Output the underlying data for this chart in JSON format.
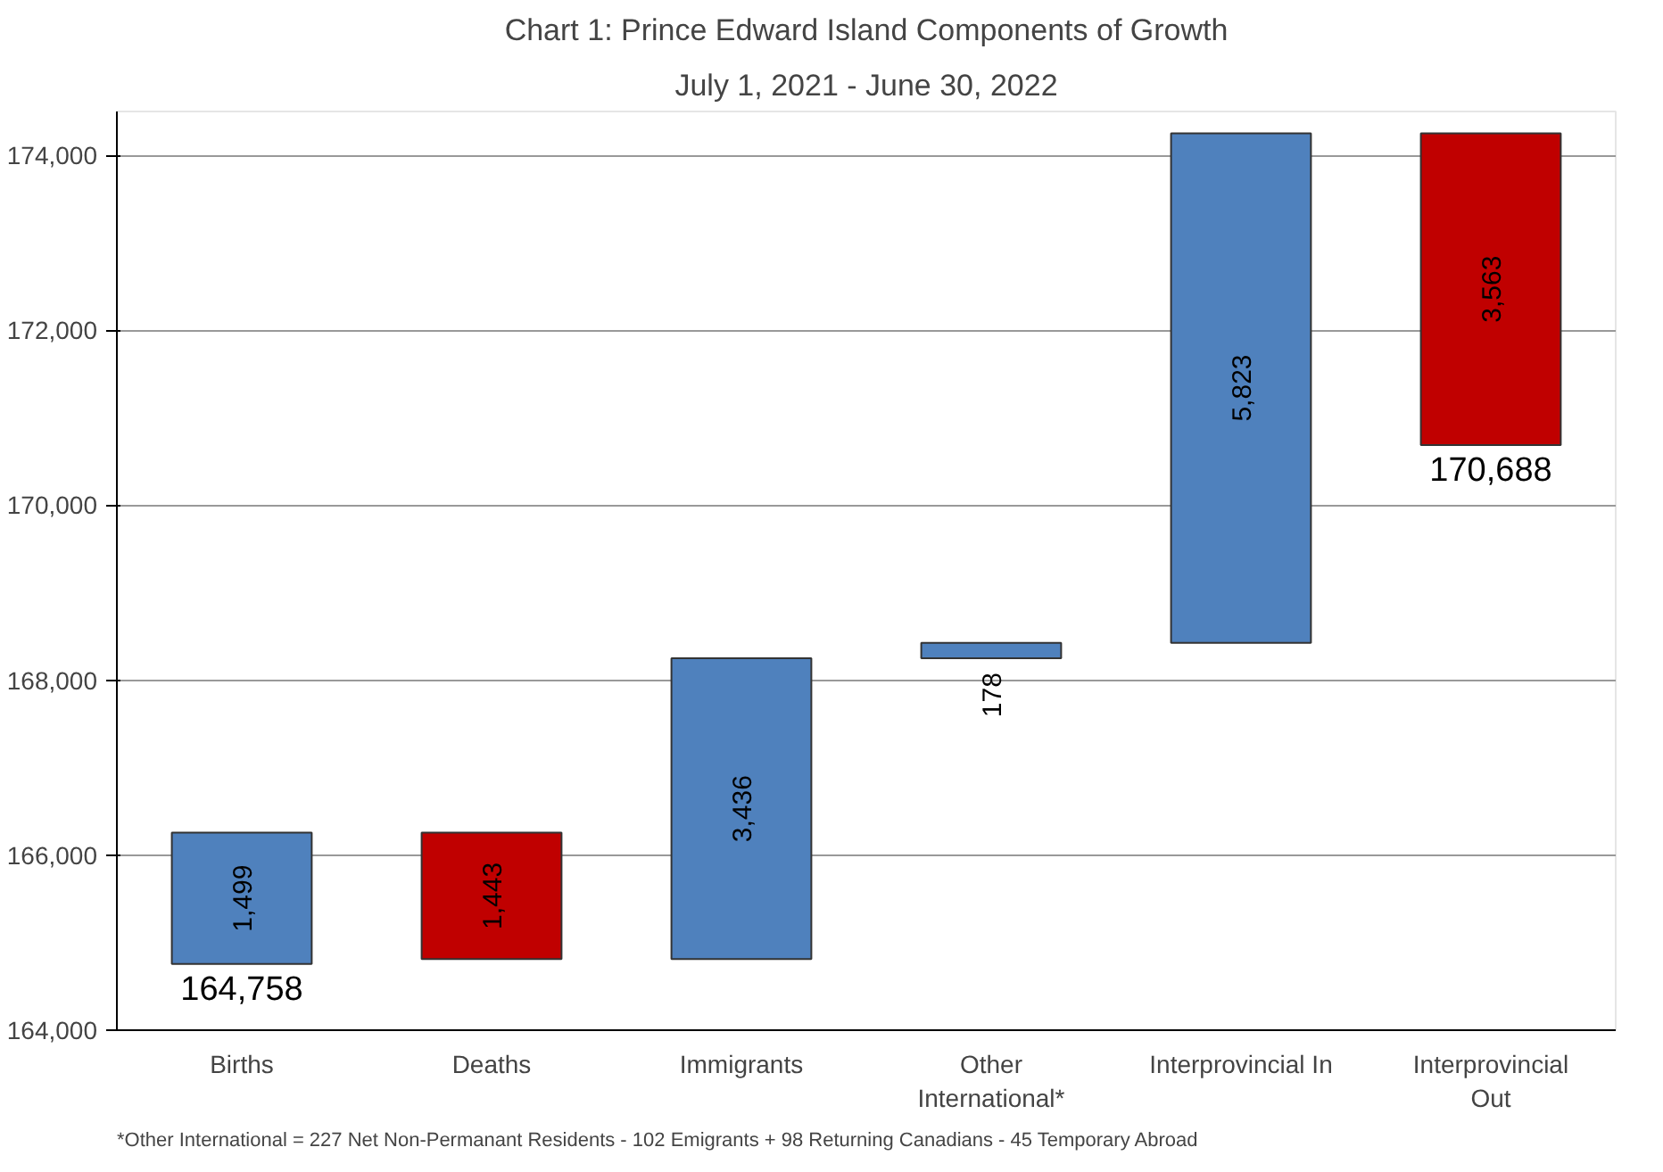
{
  "chart_data": {
    "type": "bar",
    "title": "Chart 1: Prince Edward Island Components of Growth",
    "subtitle": "July 1, 2021 - June 30, 2022",
    "categories": [
      "Births",
      "Deaths",
      "Immigrants",
      "Other International*",
      "Interprovincial In",
      "Interprovincial Out"
    ],
    "values": [
      1499,
      -1443,
      3436,
      178,
      5823,
      -3563
    ],
    "base": [
      164758,
      166257,
      164814,
      168250,
      168428,
      174251
    ],
    "colors": [
      "#4f81bd",
      "#c00000",
      "#4f81bd",
      "#4f81bd",
      "#4f81bd",
      "#c00000"
    ],
    "value_labels": [
      "1,499",
      "1,443",
      "3,436",
      "178",
      "5,823",
      "3,563"
    ],
    "ylim": [
      164000,
      174500
    ],
    "yticks": [
      {
        "value": 164000,
        "label": "164,000"
      },
      {
        "value": 166000,
        "label": "166,000"
      },
      {
        "value": 168000,
        "label": "168,000"
      },
      {
        "value": 170000,
        "label": "170,000"
      },
      {
        "value": 172000,
        "label": "172,000"
      },
      {
        "value": 174000,
        "label": "174,000"
      }
    ],
    "grid": "y",
    "annotations": [
      {
        "text": "164,758",
        "x": "Births",
        "y": 164758
      },
      {
        "text": "170,688",
        "x": "Interprovincial Out",
        "y": 170688
      },
      "*Other International = 227 Net Non-Permanant Residents - 102 Emigrants + 98 Returning Canadians - 45 Temporary Abroad"
    ]
  }
}
